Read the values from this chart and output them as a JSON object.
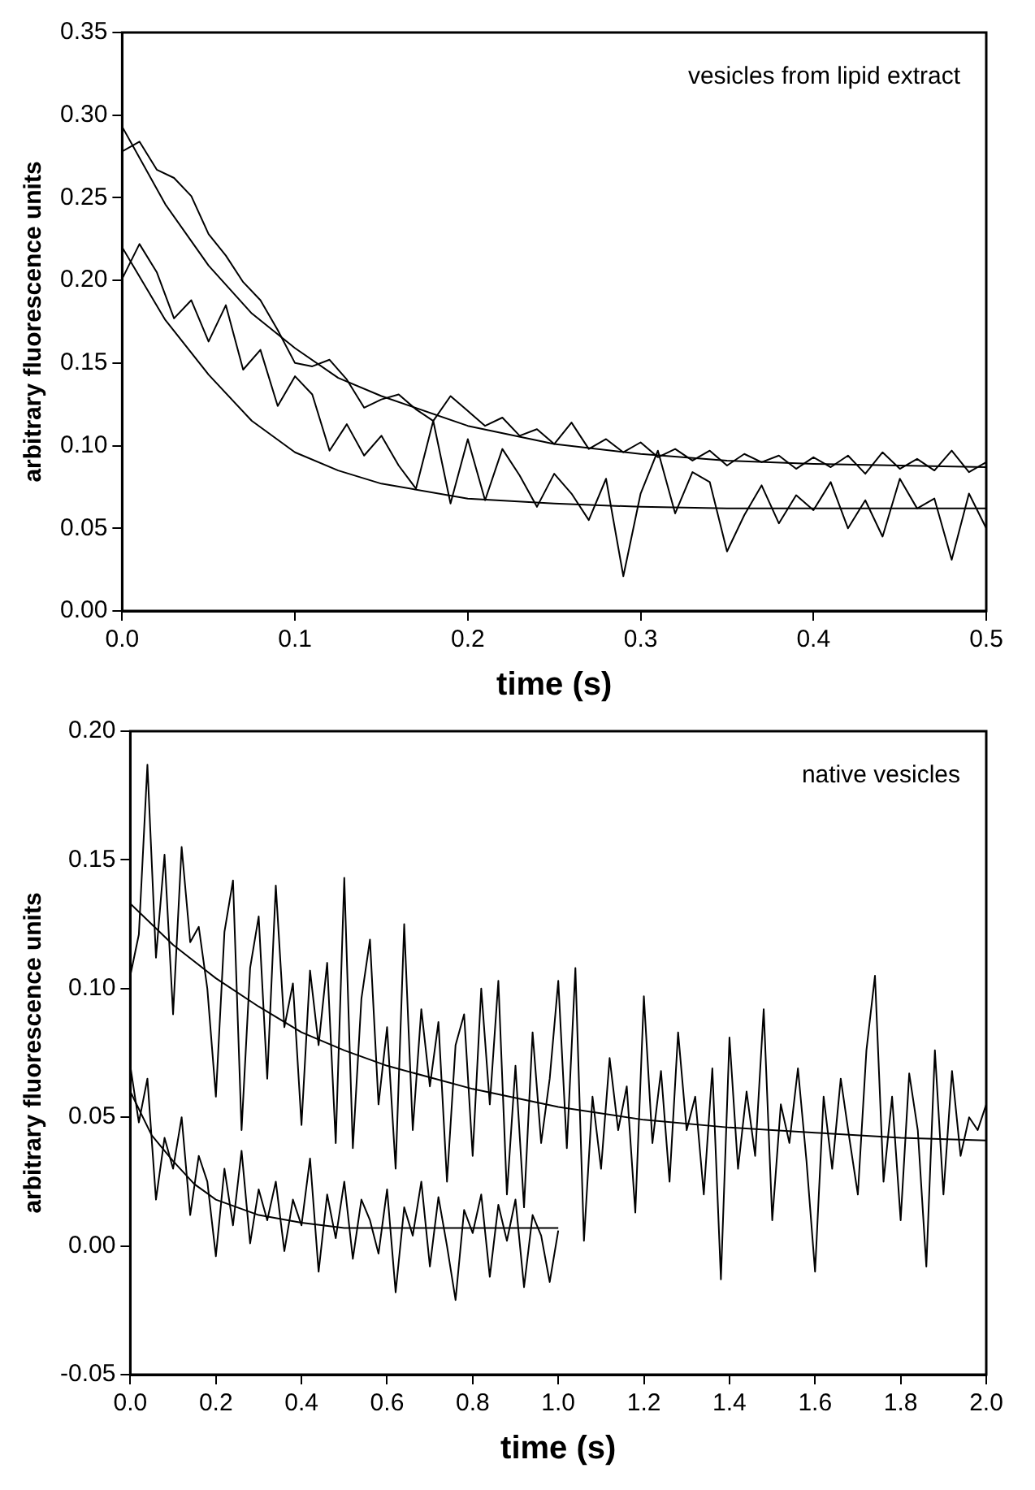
{
  "chart_data": [
    {
      "type": "line",
      "xlabel": "time (s)",
      "ylabel": "arbitrary fluorescence units",
      "annotations": [
        "vesicles from lipid extract"
      ],
      "grid": false,
      "legend": false,
      "xlim": [
        0,
        0.5
      ],
      "xticks": [
        {
          "value": 0,
          "label": "0.0"
        },
        {
          "value": 0.1,
          "label": "0.1"
        },
        {
          "value": 0.2,
          "label": "0.2"
        },
        {
          "value": 0.3,
          "label": "0.3"
        },
        {
          "value": 0.4,
          "label": "0.4"
        },
        {
          "value": 0.5,
          "label": "0.5"
        }
      ],
      "ylim": [
        0,
        0.35
      ],
      "yticks": [
        {
          "value": 0,
          "label": "0.00"
        },
        {
          "value": 0.05,
          "label": "0.05"
        },
        {
          "value": 0.1,
          "label": "0.10"
        },
        {
          "value": 0.15,
          "label": "0.15"
        },
        {
          "value": 0.2,
          "label": "0.20"
        },
        {
          "value": 0.25,
          "label": "0.25"
        },
        {
          "value": 0.3,
          "label": "0.30"
        },
        {
          "value": 0.35,
          "label": "0.35"
        }
      ],
      "series": [
        {
          "color": "#000000",
          "x": [
            0,
            0.01,
            0.02,
            0.03,
            0.04,
            0.05,
            0.06,
            0.07,
            0.08,
            0.09,
            0.1,
            0.11,
            0.12,
            0.13,
            0.14,
            0.15,
            0.16,
            0.17,
            0.18,
            0.19,
            0.2,
            0.21,
            0.22,
            0.23,
            0.24,
            0.25,
            0.26,
            0.27,
            0.28,
            0.29,
            0.3,
            0.31,
            0.32,
            0.33,
            0.34,
            0.35,
            0.36,
            0.37,
            0.38,
            0.39,
            0.4,
            0.41,
            0.42,
            0.43,
            0.44,
            0.45,
            0.46,
            0.47,
            0.48,
            0.49,
            0.5
          ],
          "values": [
            0.278,
            0.284,
            0.267,
            0.262,
            0.251,
            0.228,
            0.215,
            0.199,
            0.188,
            0.17,
            0.15,
            0.148,
            0.152,
            0.14,
            0.123,
            0.128,
            0.131,
            0.122,
            0.115,
            0.13,
            0.121,
            0.112,
            0.117,
            0.106,
            0.11,
            0.101,
            0.114,
            0.098,
            0.104,
            0.096,
            0.102,
            0.093,
            0.098,
            0.091,
            0.097,
            0.088,
            0.095,
            0.09,
            0.094,
            0.086,
            0.093,
            0.087,
            0.094,
            0.083,
            0.096,
            0.086,
            0.092,
            0.085,
            0.097,
            0.084,
            0.09
          ]
        },
        {
          "color": "#000000",
          "x": [
            0,
            0.01,
            0.02,
            0.03,
            0.04,
            0.05,
            0.06,
            0.07,
            0.08,
            0.09,
            0.1,
            0.11,
            0.12,
            0.13,
            0.14,
            0.15,
            0.16,
            0.17,
            0.18,
            0.19,
            0.2,
            0.21,
            0.22,
            0.23,
            0.24,
            0.25,
            0.26,
            0.27,
            0.28,
            0.29,
            0.3,
            0.31,
            0.32,
            0.33,
            0.34,
            0.35,
            0.36,
            0.37,
            0.38,
            0.39,
            0.4,
            0.41,
            0.42,
            0.43,
            0.44,
            0.45,
            0.46,
            0.47,
            0.48,
            0.49,
            0.5
          ],
          "values": [
            0.201,
            0.222,
            0.205,
            0.177,
            0.188,
            0.163,
            0.185,
            0.146,
            0.158,
            0.124,
            0.142,
            0.131,
            0.097,
            0.113,
            0.094,
            0.106,
            0.088,
            0.074,
            0.115,
            0.065,
            0.104,
            0.067,
            0.098,
            0.082,
            0.063,
            0.083,
            0.071,
            0.055,
            0.08,
            0.021,
            0.071,
            0.097,
            0.059,
            0.084,
            0.078,
            0.036,
            0.058,
            0.076,
            0.053,
            0.07,
            0.061,
            0.078,
            0.05,
            0.067,
            0.045,
            0.08,
            0.062,
            0.068,
            0.031,
            0.071,
            0.05
          ]
        },
        {
          "type": "line",
          "color": "#000000",
          "x": [
            0,
            0.025,
            0.05,
            0.075,
            0.1,
            0.125,
            0.15,
            0.2,
            0.25,
            0.3,
            0.35,
            0.4,
            0.45,
            0.5
          ],
          "values": [
            0.293,
            0.246,
            0.209,
            0.18,
            0.159,
            0.141,
            0.13,
            0.112,
            0.101,
            0.095,
            0.091,
            0.089,
            0.088,
            0.087
          ]
        },
        {
          "type": "line",
          "color": "#000000",
          "x": [
            0,
            0.025,
            0.05,
            0.075,
            0.1,
            0.125,
            0.15,
            0.2,
            0.25,
            0.3,
            0.35,
            0.4,
            0.45,
            0.5
          ],
          "values": [
            0.22,
            0.176,
            0.143,
            0.115,
            0.096,
            0.085,
            0.077,
            0.068,
            0.065,
            0.063,
            0.062,
            0.062,
            0.062,
            0.062
          ]
        }
      ]
    },
    {
      "type": "line",
      "xlabel": "time (s)",
      "ylabel": "arbitrary fluorescence units",
      "annotations": [
        "native vesicles"
      ],
      "grid": false,
      "legend": false,
      "xlim": [
        0,
        2
      ],
      "xticks": [
        {
          "value": 0,
          "label": "0.0"
        },
        {
          "value": 0.2,
          "label": "0.2"
        },
        {
          "value": 0.4,
          "label": "0.4"
        },
        {
          "value": 0.6,
          "label": "0.6"
        },
        {
          "value": 0.8,
          "label": "0.8"
        },
        {
          "value": 1,
          "label": "1.0"
        },
        {
          "value": 1.2,
          "label": "1.2"
        },
        {
          "value": 1.4,
          "label": "1.4"
        },
        {
          "value": 1.6,
          "label": "1.6"
        },
        {
          "value": 1.8,
          "label": "1.8"
        },
        {
          "value": 2,
          "label": "2.0"
        }
      ],
      "ylim": [
        -0.05,
        0.2
      ],
      "yticks": [
        {
          "value": -0.05,
          "label": "-0.05"
        },
        {
          "value": 0,
          "label": "0.00"
        },
        {
          "value": 0.05,
          "label": "0.05"
        },
        {
          "value": 0.1,
          "label": "0.10"
        },
        {
          "value": 0.15,
          "label": "0.15"
        },
        {
          "value": 0.2,
          "label": "0.20"
        }
      ],
      "series": [
        {
          "color": "#000000",
          "x": [
            0,
            0.02,
            0.04,
            0.06,
            0.08,
            0.1,
            0.12,
            0.14,
            0.16,
            0.18,
            0.2,
            0.22,
            0.24,
            0.26,
            0.28,
            0.3,
            0.32,
            0.34,
            0.36,
            0.38,
            0.4,
            0.42,
            0.44,
            0.46,
            0.48,
            0.5,
            0.52,
            0.54,
            0.56,
            0.58,
            0.6,
            0.62,
            0.64,
            0.66,
            0.68,
            0.7,
            0.72,
            0.74,
            0.76,
            0.78,
            0.8,
            0.82,
            0.84,
            0.86,
            0.88,
            0.9,
            0.92,
            0.94,
            0.96,
            0.98,
            1,
            1.02,
            1.04,
            1.06,
            1.08,
            1.1,
            1.12,
            1.14,
            1.16,
            1.18,
            1.2,
            1.22,
            1.24,
            1.26,
            1.28,
            1.3,
            1.32,
            1.34,
            1.36,
            1.38,
            1.4,
            1.42,
            1.44,
            1.46,
            1.48,
            1.5,
            1.52,
            1.54,
            1.56,
            1.58,
            1.6,
            1.62,
            1.64,
            1.66,
            1.68,
            1.7,
            1.72,
            1.74,
            1.76,
            1.78,
            1.8,
            1.82,
            1.84,
            1.86,
            1.88,
            1.9,
            1.92,
            1.94,
            1.96,
            1.98,
            2
          ],
          "values": [
            0.105,
            0.121,
            0.187,
            0.112,
            0.152,
            0.09,
            0.155,
            0.118,
            0.124,
            0.1,
            0.058,
            0.122,
            0.142,
            0.045,
            0.108,
            0.128,
            0.065,
            0.14,
            0.085,
            0.102,
            0.047,
            0.107,
            0.078,
            0.11,
            0.04,
            0.143,
            0.038,
            0.096,
            0.119,
            0.055,
            0.085,
            0.03,
            0.125,
            0.045,
            0.092,
            0.062,
            0.087,
            0.025,
            0.078,
            0.09,
            0.035,
            0.1,
            0.055,
            0.103,
            0.02,
            0.07,
            0.015,
            0.083,
            0.04,
            0.065,
            0.103,
            0.038,
            0.108,
            0.002,
            0.058,
            0.03,
            0.073,
            0.045,
            0.062,
            0.013,
            0.097,
            0.04,
            0.068,
            0.025,
            0.083,
            0.045,
            0.058,
            0.02,
            0.069,
            -0.013,
            0.081,
            0.03,
            0.06,
            0.035,
            0.092,
            0.01,
            0.055,
            0.04,
            0.069,
            0.033,
            -0.01,
            0.058,
            0.03,
            0.065,
            0.042,
            0.02,
            0.076,
            0.105,
            0.025,
            0.058,
            0.01,
            0.067,
            0.045,
            -0.008,
            0.076,
            0.02,
            0.068,
            0.035,
            0.05,
            0.045,
            0.055
          ]
        },
        {
          "color": "#000000",
          "x": [
            0,
            0.02,
            0.04,
            0.06,
            0.08,
            0.1,
            0.12,
            0.14,
            0.16,
            0.18,
            0.2,
            0.22,
            0.24,
            0.26,
            0.28,
            0.3,
            0.32,
            0.34,
            0.36,
            0.38,
            0.4,
            0.42,
            0.44,
            0.46,
            0.48,
            0.5,
            0.52,
            0.54,
            0.56,
            0.58,
            0.6,
            0.62,
            0.64,
            0.66,
            0.68,
            0.7,
            0.72,
            0.74,
            0.76,
            0.78,
            0.8,
            0.82,
            0.84,
            0.86,
            0.88,
            0.9,
            0.92,
            0.94,
            0.96,
            0.98,
            1
          ],
          "values": [
            0.07,
            0.048,
            0.065,
            0.018,
            0.042,
            0.03,
            0.05,
            0.012,
            0.035,
            0.025,
            -0.004,
            0.03,
            0.008,
            0.037,
            0.001,
            0.022,
            0.01,
            0.025,
            -0.002,
            0.018,
            0.008,
            0.034,
            -0.01,
            0.02,
            0.003,
            0.025,
            -0.005,
            0.018,
            0.01,
            -0.003,
            0.022,
            -0.018,
            0.015,
            0.004,
            0.025,
            -0.008,
            0.019,
            0.0,
            -0.021,
            0.014,
            0.005,
            0.02,
            -0.012,
            0.016,
            0.002,
            0.018,
            -0.016,
            0.012,
            0.004,
            -0.014,
            0.006
          ]
        },
        {
          "type": "line",
          "color": "#000000",
          "x": [
            0,
            0.1,
            0.2,
            0.3,
            0.4,
            0.5,
            0.6,
            0.8,
            1,
            1.2,
            1.4,
            1.6,
            1.8,
            2
          ],
          "values": [
            0.133,
            0.117,
            0.104,
            0.093,
            0.083,
            0.076,
            0.07,
            0.061,
            0.054,
            0.049,
            0.046,
            0.044,
            0.042,
            0.041
          ]
        },
        {
          "type": "line",
          "color": "#000000",
          "x": [
            0,
            0.05,
            0.1,
            0.15,
            0.2,
            0.3,
            0.4,
            0.5,
            0.6,
            0.7,
            0.8,
            0.9,
            1
          ],
          "values": [
            0.06,
            0.043,
            0.033,
            0.024,
            0.018,
            0.012,
            0.009,
            0.007,
            0.007,
            0.007,
            0.007,
            0.007,
            0.007
          ]
        }
      ]
    }
  ]
}
